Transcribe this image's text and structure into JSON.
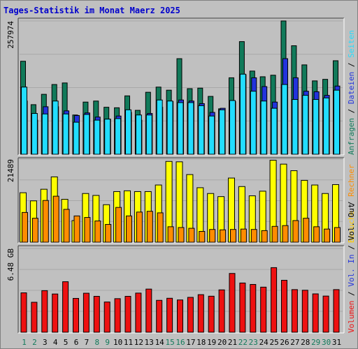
{
  "title": "Tages-Statistik im Monat Maerz 2025",
  "colors": {
    "background": "#c0c0c0",
    "panel": "#c0c0c0",
    "title": "#0000cc",
    "anfragen": "#117a5a",
    "dateien": "#2233dd",
    "seiten": "#22ddff",
    "besuche": "#ffff00",
    "rechner": "#ff8c00",
    "volumen": "#ee1111",
    "day_weekend": "#117a5a",
    "day_weekday": "#000000"
  },
  "legend_right": {
    "panel1": [
      {
        "text": "Anfragen",
        "color": "#117a5a"
      },
      {
        "text": " / ",
        "color": "#000000"
      },
      {
        "text": "Dateien",
        "color": "#2233dd"
      },
      {
        "text": " / ",
        "color": "#000000"
      },
      {
        "text": "Seiten",
        "color": "#22ddff"
      }
    ],
    "panel2": [
      {
        "text": "Besuche",
        "color": "#ffcc00"
      },
      {
        "text": " / ",
        "color": "#000000"
      },
      {
        "text": "Rechner",
        "color": "#ff8c00"
      }
    ],
    "panel3": [
      {
        "text": "Volumen",
        "color": "#ee1111"
      },
      {
        "text": " / ",
        "color": "#000000"
      },
      {
        "text": "Vol. In",
        "color": "#2233dd"
      },
      {
        "text": " / ",
        "color": "#000000"
      },
      {
        "text": "Vol. Out",
        "color": "#000000"
      }
    ]
  },
  "chart_data": {
    "type": "bar",
    "x": [
      1,
      2,
      3,
      4,
      5,
      6,
      7,
      8,
      9,
      10,
      11,
      12,
      13,
      14,
      15,
      16,
      17,
      18,
      19,
      20,
      21,
      22,
      23,
      24,
      25,
      26,
      27,
      28,
      29,
      30,
      31
    ],
    "weekend_days": [
      1,
      2,
      8,
      9,
      15,
      16,
      22,
      23,
      29,
      30
    ],
    "panels": [
      {
        "ymax_label": "257974",
        "ymax": 257974,
        "series": [
          {
            "name": "Anfragen",
            "values": [
              180000,
              96000,
              116000,
              135000,
              138000,
              76000,
              101000,
              103000,
              91000,
              90000,
              113000,
              85000,
              120000,
              130000,
              124000,
              185000,
              127000,
              128000,
              112000,
              88000,
              148000,
              218000,
              161000,
              150000,
              153000,
              258000,
              210000,
              173000,
              142000,
              145000,
              181000
            ]
          },
          {
            "name": "Dateien",
            "values": [
              103000,
              66000,
              92000,
              92000,
              84000,
              75000,
              80000,
              72000,
              68000,
              74000,
              81000,
              66000,
              79000,
              91000,
              102000,
              105000,
              103000,
              98000,
              81000,
              89000,
              102000,
              154000,
              148000,
              131000,
              101000,
              185000,
              148000,
              122000,
              121000,
              114000,
              132000
            ]
          },
          {
            "name": "Seiten",
            "values": [
              130000,
              79000,
              78000,
              103000,
              78000,
              62000,
              77000,
              66000,
              68000,
              69000,
              86000,
              76000,
              76000,
              105000,
              103000,
              100000,
              100000,
              94000,
              74000,
              86000,
              104000,
              155000,
              122000,
              103000,
              89000,
              135000,
              106000,
              114000,
              106000,
              109000,
              124000
            ]
          }
        ]
      },
      {
        "ymax_label": "21489",
        "ymax": 21489,
        "series": [
          {
            "name": "Besuche",
            "values": [
              12800,
              10700,
              13700,
              16900,
              11100,
              5600,
              12600,
              12100,
              9700,
              13100,
              13300,
              13100,
              13100,
              14800,
              20900,
              20800,
              17500,
              14100,
              12600,
              11800,
              16600,
              14400,
              12000,
              13200,
              21200,
              20200,
              18500,
              16000,
              14800,
              12600,
              14900
            ]
          },
          {
            "name": "Rechner",
            "values": [
              7700,
              6200,
              10800,
              11900,
              8500,
              6800,
              6400,
              5500,
              4600,
              9000,
              6800,
              7800,
              8000,
              7600,
              4000,
              3800,
              3600,
              2800,
              3300,
              3200,
              3300,
              3400,
              3300,
              3000,
              4100,
              4300,
              5600,
              6200,
              4000,
              3400,
              3800
            ]
          }
        ]
      },
      {
        "ymax_label": "6.48 GB",
        "ymax": 6.48,
        "series": [
          {
            "name": "Volumen",
            "values": [
              3.05,
              2.32,
              3.22,
              2.96,
              3.91,
              2.62,
              3.02,
              2.78,
              2.34,
              2.6,
              2.78,
              3.03,
              3.34,
              2.47,
              2.63,
              2.5,
              2.7,
              2.91,
              2.79,
              3.28,
              4.55,
              3.81,
              3.7,
              3.49,
              5.0,
              4.02,
              3.3,
              3.25,
              2.97,
              2.8,
              3.3
            ]
          }
        ]
      }
    ]
  }
}
